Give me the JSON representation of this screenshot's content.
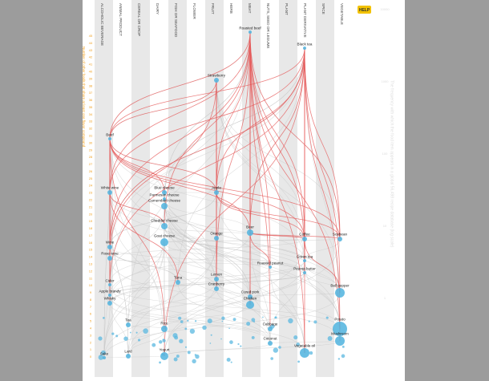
{
  "help": "HELP",
  "columns": [
    "ALCOHOLIC BEVERAGE",
    "ANIMAL PRODUCT",
    "CEREAL OR CROP",
    "DAIRY",
    "FISH OR SEAFOOD",
    "FLOWER",
    "FRUIT",
    "HERB",
    "MEAT",
    "NUTS, SEED OR LEGUME",
    "PLANT",
    "PLANT DERIVATIVE",
    "SPICE",
    "VEGETABLE"
  ],
  "y_axis": {
    "label": "Number of other foods that share at least one flavor compound",
    "ticks": [
      0,
      1,
      2,
      3,
      4,
      5,
      6,
      7,
      8,
      9,
      10,
      11,
      12,
      13,
      14,
      15,
      16,
      17,
      18,
      19,
      20,
      21,
      22,
      23,
      24,
      25,
      26,
      27,
      28,
      29,
      30,
      31,
      32,
      33,
      34,
      35,
      36,
      37,
      38,
      39,
      40,
      41,
      42,
      43,
      44,
      45
    ]
  },
  "y2_axis": {
    "label": "The frequency with which the food item appears in a global 56,498 recipe database (log scale)",
    "ticks": [
      10000,
      1000,
      100,
      10,
      1
    ]
  },
  "nodes": [
    {
      "label": "Roasted beef"
    },
    {
      "label": "Black tea"
    },
    {
      "label": "Strawberry"
    },
    {
      "label": "Beef"
    },
    {
      "label": "White wine"
    },
    {
      "label": "Blue cheese"
    },
    {
      "label": "Parmesan cheese"
    },
    {
      "label": "Camembert cheese"
    },
    {
      "label": "Apple"
    },
    {
      "label": "Cheddar cheese"
    },
    {
      "label": "Goat cheese"
    },
    {
      "label": "Orange"
    },
    {
      "label": "Beer"
    },
    {
      "label": "Coffee"
    },
    {
      "label": "Soybean"
    },
    {
      "label": "Wine"
    },
    {
      "label": "Rose wine"
    },
    {
      "label": "Green tea"
    },
    {
      "label": "Roasted peanut"
    },
    {
      "label": "Peanut butter"
    },
    {
      "label": "Cider"
    },
    {
      "label": "Apple brandy"
    },
    {
      "label": "Whisky"
    },
    {
      "label": "Tuna"
    },
    {
      "label": "Lemon"
    },
    {
      "label": "Cranberry"
    },
    {
      "label": "Cured pork"
    },
    {
      "label": "Chicken"
    },
    {
      "label": "Bell pepper"
    },
    {
      "label": "Tea"
    },
    {
      "label": "Rice"
    },
    {
      "label": "Cabbage"
    },
    {
      "label": "Potato"
    },
    {
      "label": "Mushroom"
    },
    {
      "label": "Sake"
    },
    {
      "label": "Lard"
    },
    {
      "label": "Yogurt"
    },
    {
      "label": "Coconut"
    },
    {
      "label": "Vegetable oil"
    }
  ]
}
